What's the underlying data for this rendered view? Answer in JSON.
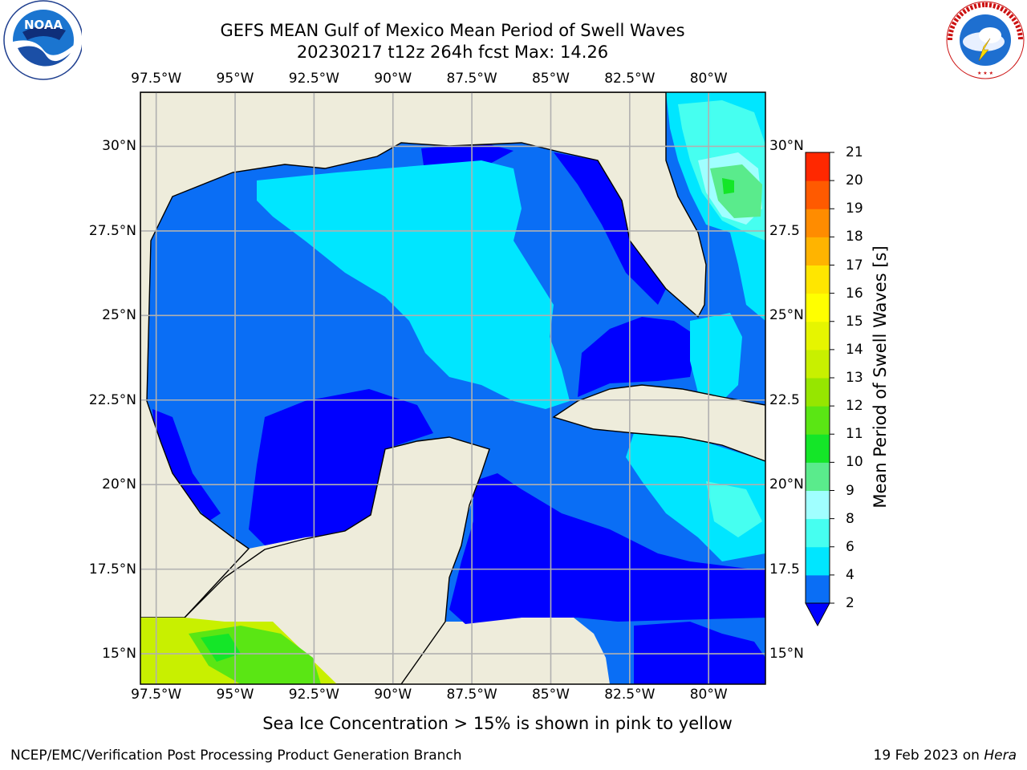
{
  "title": {
    "line1": "GEFS MEAN Gulf of Mexico Mean Period of Swell Waves",
    "line2": "20230217 t12z 264h fcst   Max: 14.26"
  },
  "logos": {
    "left": {
      "name": "noaa-logo",
      "text": "NOAA",
      "ring_text": "NATIONAL OCEANIC AND ATMOSPHERIC ADMINISTRATION · U.S. DEPARTMENT OF COMMERCE"
    },
    "right": {
      "name": "nws-logo",
      "ring_text": "NATIONAL WEATHER SERVICE"
    }
  },
  "map": {
    "lon_labels": [
      "97.5°W",
      "95°W",
      "92.5°W",
      "90°W",
      "87.5°W",
      "85°W",
      "82.5°W",
      "80°W"
    ],
    "lon_values": [
      -97.5,
      -95,
      -92.5,
      -90,
      -87.5,
      -85,
      -82.5,
      -80
    ],
    "lat_labels_left": [
      "30°N",
      "27.5°N",
      "25°N",
      "22.5°N",
      "20°N",
      "17.5°N",
      "15°N"
    ],
    "lat_labels_right": [
      "30°N",
      "27.5",
      "25°N",
      "22.5",
      "20°N",
      "17.5",
      "15°N"
    ],
    "lat_values": [
      30,
      27.5,
      25,
      22.5,
      20,
      17.5,
      15
    ],
    "extent": {
      "lon_min": -98,
      "lon_max": -78.2,
      "lat_min": 14.1,
      "lat_max": 31.6
    },
    "colors": {
      "land": "#eeecdb",
      "grid": "#b0b0b0",
      "coast": "#000000"
    }
  },
  "colorbar": {
    "title": "Mean Period of Swell Waves [s]",
    "ticks": [
      "2",
      "4",
      "6",
      "8",
      "9",
      "10",
      "11",
      "12",
      "13",
      "14",
      "15",
      "16",
      "17",
      "18",
      "19",
      "20",
      "21"
    ],
    "colors": [
      "#0a6ef5",
      "#00e6ff",
      "#46fff0",
      "#a0ffff",
      "#5aeb8c",
      "#14e628",
      "#5ae614",
      "#96e600",
      "#c8f000",
      "#e6f500",
      "#ffff00",
      "#ffe600",
      "#ffb400",
      "#ff8c00",
      "#ff5a00",
      "#ff2800"
    ],
    "under_color": "#0000ff"
  },
  "note": "Sea Ice Concentration > 15% is shown in pink to yellow",
  "footer": {
    "left": "NCEP/EMC/Verification Post Processing Product Generation Branch",
    "right_prefix": "19 Feb 2023 on ",
    "right_host": "Hera"
  }
}
